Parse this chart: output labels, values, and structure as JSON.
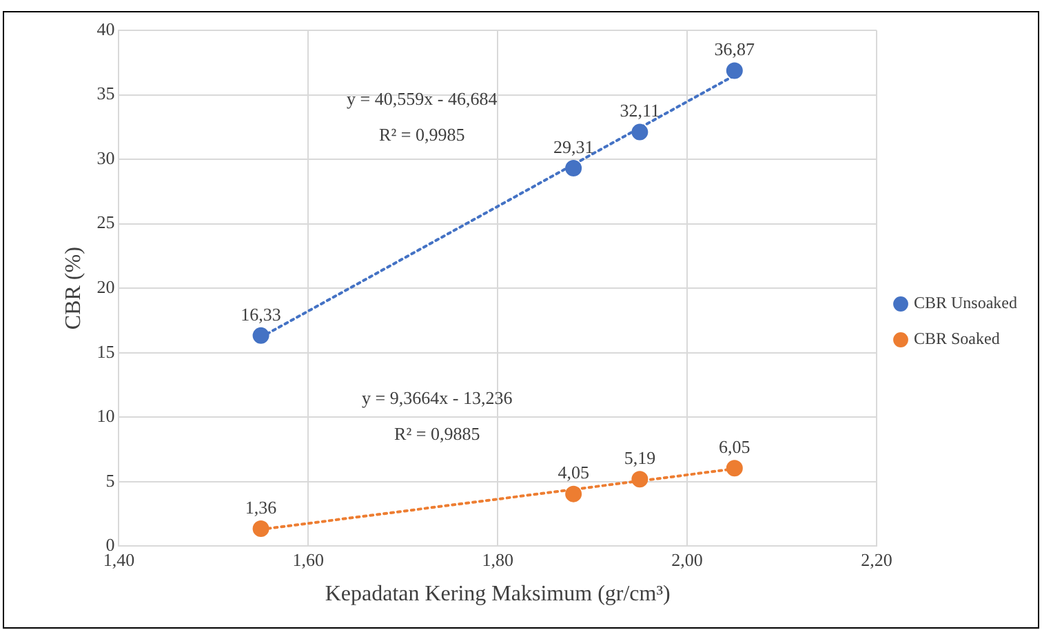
{
  "chart_data": {
    "type": "scatter",
    "xlabel": "Kepadatan Kering Maksimum (gr/cm³)",
    "ylabel": "CBR (%)",
    "xlim": [
      1.4,
      2.2
    ],
    "xticks": [
      {
        "value": 1.4,
        "label": "1,40"
      },
      {
        "value": 1.6,
        "label": "1,60"
      },
      {
        "value": 1.8,
        "label": "1,80"
      },
      {
        "value": 2.0,
        "label": "2,00"
      },
      {
        "value": 2.2,
        "label": "2,20"
      }
    ],
    "ylim": [
      0,
      40
    ],
    "yticks": [
      0,
      5,
      10,
      15,
      20,
      25,
      30,
      35,
      40
    ],
    "grid": true,
    "legend": "right",
    "marker": "circle",
    "x": [
      1.55,
      1.88,
      1.95,
      2.05
    ],
    "series": [
      {
        "name": "CBR Unsoaked",
        "color": "#4472c4",
        "values": [
          16.33,
          29.31,
          32.11,
          36.87
        ],
        "value_labels": [
          "16,33",
          "29,31",
          "32,11",
          "36,87"
        ]
      },
      {
        "name": "CBR Soaked",
        "color": "#ed7d31",
        "values": [
          1.36,
          4.05,
          5.19,
          6.05
        ],
        "value_labels": [
          "1,36",
          "4,05",
          "5,19",
          "6,05"
        ]
      },
      {
        "type": "line",
        "color": "#4472c4",
        "values": [
          16.2,
          null,
          null,
          36.5
        ],
        "line_style": "dotted",
        "marker": "none"
      },
      {
        "type": "line",
        "color": "#ed7d31",
        "values": [
          1.3,
          null,
          null,
          6.0
        ],
        "line_style": "dotted",
        "marker": "none"
      }
    ],
    "annotations": [
      "y = 40,559x - 46,684",
      "R² = 0,9985",
      "y = 9,3664x - 13,236",
      "R² = 0,9885"
    ]
  }
}
